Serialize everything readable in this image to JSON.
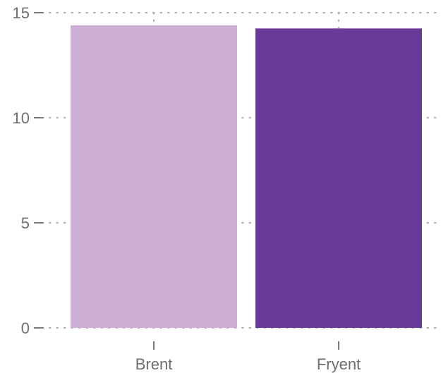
{
  "chart_data": {
    "type": "bar",
    "categories": [
      "Brent",
      "Fryent"
    ],
    "values": [
      14.4,
      14.25
    ],
    "colors": [
      "#ceb0d6",
      "#6a3a99"
    ],
    "title": "",
    "xlabel": "",
    "ylabel": "",
    "ylim": [
      0,
      15
    ],
    "yticks": [
      "0",
      "5",
      "10",
      "15"
    ],
    "grid": true,
    "legend": "none"
  }
}
